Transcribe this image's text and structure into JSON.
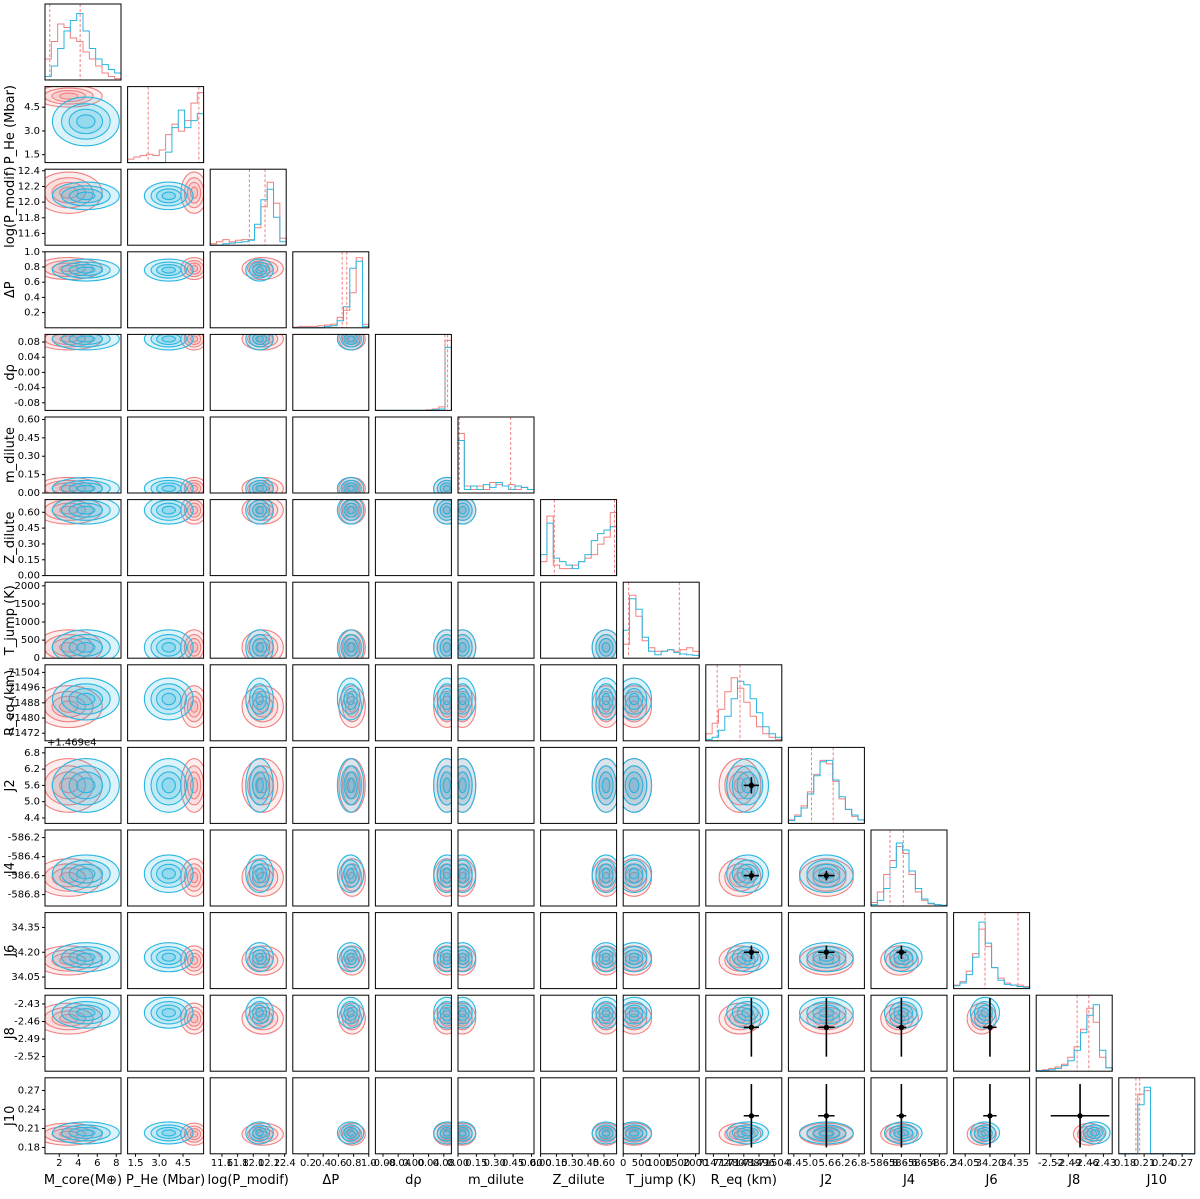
{
  "chart_data": {
    "type": "corner",
    "series": [
      {
        "color": "#f08080"
      },
      {
        "color": "#29b6e0"
      }
    ],
    "variables": [
      {
        "label": "M_core(M⊕)",
        "ticks": [
          "2",
          "4",
          "6",
          "8"
        ],
        "range": [
          0.5,
          8.5
        ],
        "mode": [
          3.0,
          4.8
        ],
        "spread": [
          1.6,
          1.6
        ],
        "qlines": [
          [
            1.0,
            4.2
          ]
        ],
        "hist": "core"
      },
      {
        "label": "P_He (Mbar)",
        "ticks": [
          "1.5",
          "3.0",
          "4.5"
        ],
        "range": [
          1.0,
          5.8
        ],
        "mode": [
          5.2,
          3.6
        ],
        "spread": [
          0.3,
          0.7
        ],
        "qlines": [
          [
            2.3,
            5.5
          ]
        ],
        "hist": "phe"
      },
      {
        "label": "log(P_modif)",
        "ticks": [
          "11.6",
          "11.8",
          "12.0",
          "12.2",
          "12.4"
        ],
        "range": [
          11.45,
          12.42
        ],
        "mode": [
          12.12,
          12.08
        ],
        "spread": [
          0.12,
          0.08
        ],
        "qlines": [
          [
            11.95,
            12.15
          ]
        ],
        "hist": "logp"
      },
      {
        "label": "ΔP",
        "ticks": [
          "0.2",
          "0.4",
          "0.6",
          "0.8",
          "1.0"
        ],
        "range": [
          0.0,
          1.0
        ],
        "mode": [
          0.78,
          0.76
        ],
        "spread": [
          0.04,
          0.04
        ],
        "qlines": [
          [
            0.65,
            0.71
          ]
        ],
        "hist": "dp"
      },
      {
        "label": "dρ",
        "ticks": [
          "-0.08",
          "-0.04",
          "0.00",
          "0.04",
          "0.08"
        ],
        "range": [
          -0.1,
          0.1
        ],
        "mode": [
          0.09,
          0.09
        ],
        "spread": [
          0.006,
          0.006
        ],
        "qlines": [
          [
            0.083,
            0.09
          ]
        ],
        "hist": "drho"
      },
      {
        "label": "m_dilute",
        "ticks": [
          "0.00",
          "0.15",
          "0.30",
          "0.45",
          "0.60"
        ],
        "range": [
          0.0,
          0.62
        ],
        "mode": [
          0.02,
          0.02
        ],
        "spread": [
          0.03,
          0.03
        ],
        "qlines": [
          [
            0.01,
            0.43
          ]
        ],
        "hist": "mdil"
      },
      {
        "label": "Z_dilute",
        "ticks": [
          "0.00",
          "0.15",
          "0.30",
          "0.45",
          "0.60"
        ],
        "range": [
          0.0,
          0.72
        ],
        "mode": [
          0.62,
          0.62
        ],
        "spread": [
          0.06,
          0.06
        ],
        "qlines": [
          [
            0.13,
            0.7
          ]
        ],
        "hist": "zdil"
      },
      {
        "label": "T_jump (K)",
        "ticks": [
          "0",
          "500",
          "1000",
          "1500",
          "2000"
        ],
        "range": [
          0,
          2100
        ],
        "mode": [
          300,
          300
        ],
        "spread": [
          220,
          220
        ],
        "qlines": [
          [
            150,
            1550
          ]
        ],
        "hist": "tjump"
      },
      {
        "label": "R_eq (km)",
        "ticks": [
          "71472",
          "71480",
          "71488",
          "71496",
          "71504"
        ],
        "range": [
          71468,
          71508
        ],
        "mode": [
          71486,
          71490
        ],
        "spread": [
          5,
          5
        ],
        "qlines": [
          [
            71474,
            71486
          ]
        ],
        "hist": "req"
      },
      {
        "label": "J2",
        "ticks": [
          "4.4",
          "5.0",
          "5.6",
          "6.2",
          "6.8"
        ],
        "range": [
          4.2,
          7.0
        ],
        "mode": [
          5.6,
          5.6
        ],
        "spread": [
          0.45,
          0.45
        ],
        "qlines": [
          [
            5.05,
            5.85
          ]
        ],
        "hist": "j2",
        "offset": "+1.469e4"
      },
      {
        "label": "J4",
        "ticks": [
          "-586.8",
          "-586.6",
          "-586.4",
          "-586.2"
        ],
        "range": [
          -586.92,
          -586.12
        ],
        "mode": [
          -586.62,
          -586.58
        ],
        "spread": [
          0.09,
          0.09
        ],
        "qlines": [
          [
            -586.72,
            -586.58
          ]
        ],
        "hist": "j4"
      },
      {
        "label": "J6",
        "ticks": [
          "34.05",
          "34.20",
          "34.35"
        ],
        "range": [
          33.98,
          34.44
        ],
        "mode": [
          34.15,
          34.17
        ],
        "spread": [
          0.04,
          0.04
        ],
        "qlines": [
          [
            34.17,
            34.37
          ]
        ],
        "hist": "j6"
      },
      {
        "label": "J8",
        "ticks": [
          "-2.52",
          "-2.49",
          "-2.46",
          "-2.43"
        ],
        "range": [
          -2.545,
          -2.415
        ],
        "mode": [
          -2.455,
          -2.445
        ],
        "spread": [
          0.012,
          0.012
        ],
        "qlines": [
          [
            -2.475,
            -2.455
          ]
        ],
        "hist": "j8"
      },
      {
        "label": "J10",
        "ticks": [
          "0.18",
          "0.21",
          "0.24",
          "0.27"
        ],
        "range": [
          0.17,
          0.29
        ],
        "mode": [
          0.201,
          0.203
        ],
        "spread": [
          0.004,
          0.004
        ],
        "qlines": [
          [
            0.197,
            0.203
          ]
        ],
        "hist": "j10"
      }
    ],
    "observations": [
      {
        "var": "R_eq (km)",
        "value": 71492,
        "error": 4
      },
      {
        "var": "J2",
        "value": 5.6,
        "error": 0.3
      },
      {
        "var": "J4",
        "value": -586.6,
        "error": 0.05
      },
      {
        "var": "J6",
        "value": 34.2,
        "error": 0.04
      },
      {
        "var": "J8",
        "value": -2.47,
        "error": 0.05
      },
      {
        "var": "J10",
        "value": 0.23,
        "error": 0.05
      }
    ]
  }
}
